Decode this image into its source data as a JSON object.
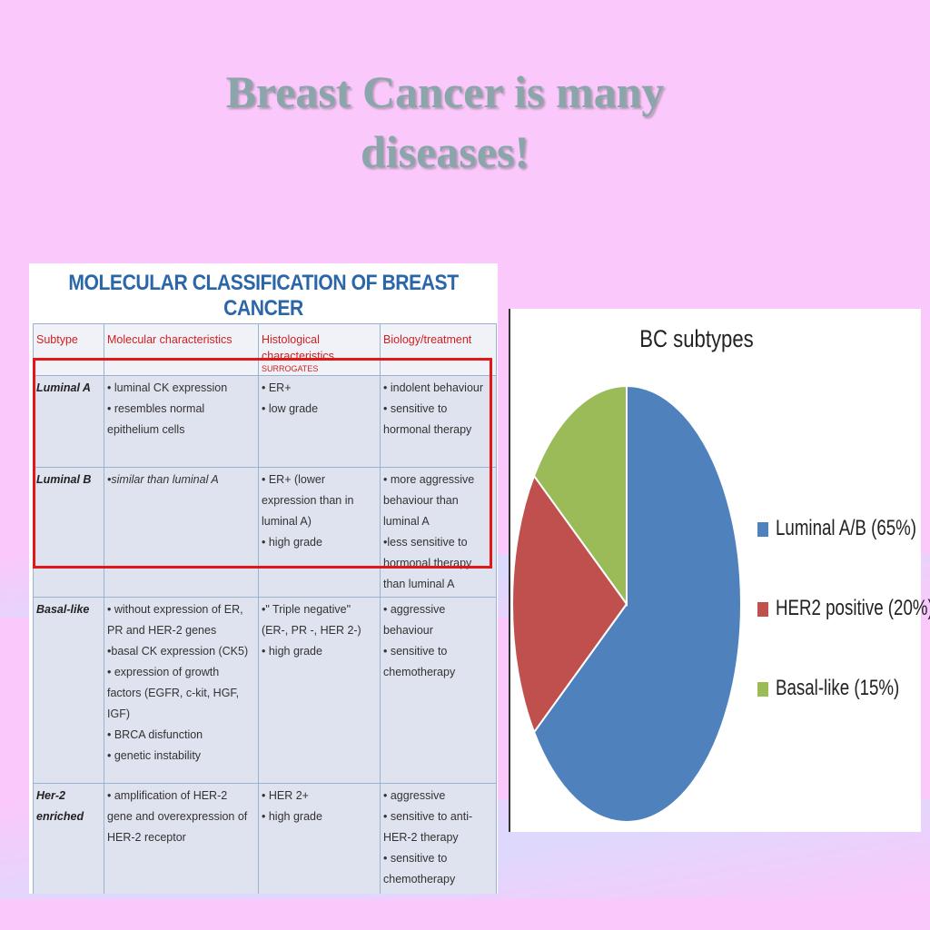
{
  "slide": {
    "title_line1": "Breast Cancer is many",
    "title_line2": "diseases!"
  },
  "table": {
    "heading": "MOLECULAR CLASSIFICATION OF BREAST CANCER",
    "headers": {
      "subtype": "Subtype",
      "molecular": "Molecular characteristics",
      "histological": "Histological characteristics",
      "histological_sub": "SURROGATES",
      "biology": "Biology/treatment"
    },
    "rows": [
      {
        "subtype": "Luminal A",
        "molecular": [
          "• luminal CK expression",
          "• resembles normal epithelium cells"
        ],
        "histological": [
          "• ER+",
          "• low grade"
        ],
        "biology": [
          "• indolent behaviour",
          "• sensitive to hormonal therapy"
        ]
      },
      {
        "subtype": "Luminal B",
        "molecular": [
          "•similar than luminal A"
        ],
        "histological": [
          "• ER+ (lower expression than in luminal A)",
          "• high grade"
        ],
        "biology": [
          "• more aggressive behaviour than luminal A",
          "•less sensitive to hormonal therapy than luminal A"
        ]
      },
      {
        "subtype": "Basal-like",
        "molecular": [
          "• without expression of ER, PR and HER-2 genes",
          "•basal CK expression (CK5)",
          "• expression of growth factors (EGFR, c-kit, HGF, IGF)",
          "• BRCA disfunction",
          "• genetic instability"
        ],
        "histological": [
          "•\" Triple negative\"",
          "(ER-, PR -, HER 2-)",
          "• high grade"
        ],
        "biology": [
          "• aggressive behaviour",
          "• sensitive to chemotherapy"
        ]
      },
      {
        "subtype": "Her-2 enriched",
        "molecular": [
          "• amplification of HER-2 gene and overexpression of HER-2 receptor"
        ],
        "histological": [
          "• HER 2+",
          "• high grade"
        ],
        "biology": [
          "• aggressive",
          "• sensitive to anti-HER-2 therapy",
          "• sensitive to chemotherapy"
        ]
      }
    ]
  },
  "colors": {
    "background": "#fbc8fb",
    "title": "#8aa6aa",
    "table_heading": "#2a66a8",
    "highlight": "#e01818"
  },
  "chart_data": {
    "type": "pie",
    "title": "BC subtypes",
    "legend_position": "right",
    "slices": [
      {
        "label": "Luminal A/B (65%)",
        "value": 65,
        "color": "#4f81bd"
      },
      {
        "label": "HER2 positive (20%)",
        "value": 20,
        "color": "#c0504d"
      },
      {
        "label": "Basal-like (15%)",
        "value": 15,
        "color": "#9bbb59"
      }
    ]
  }
}
